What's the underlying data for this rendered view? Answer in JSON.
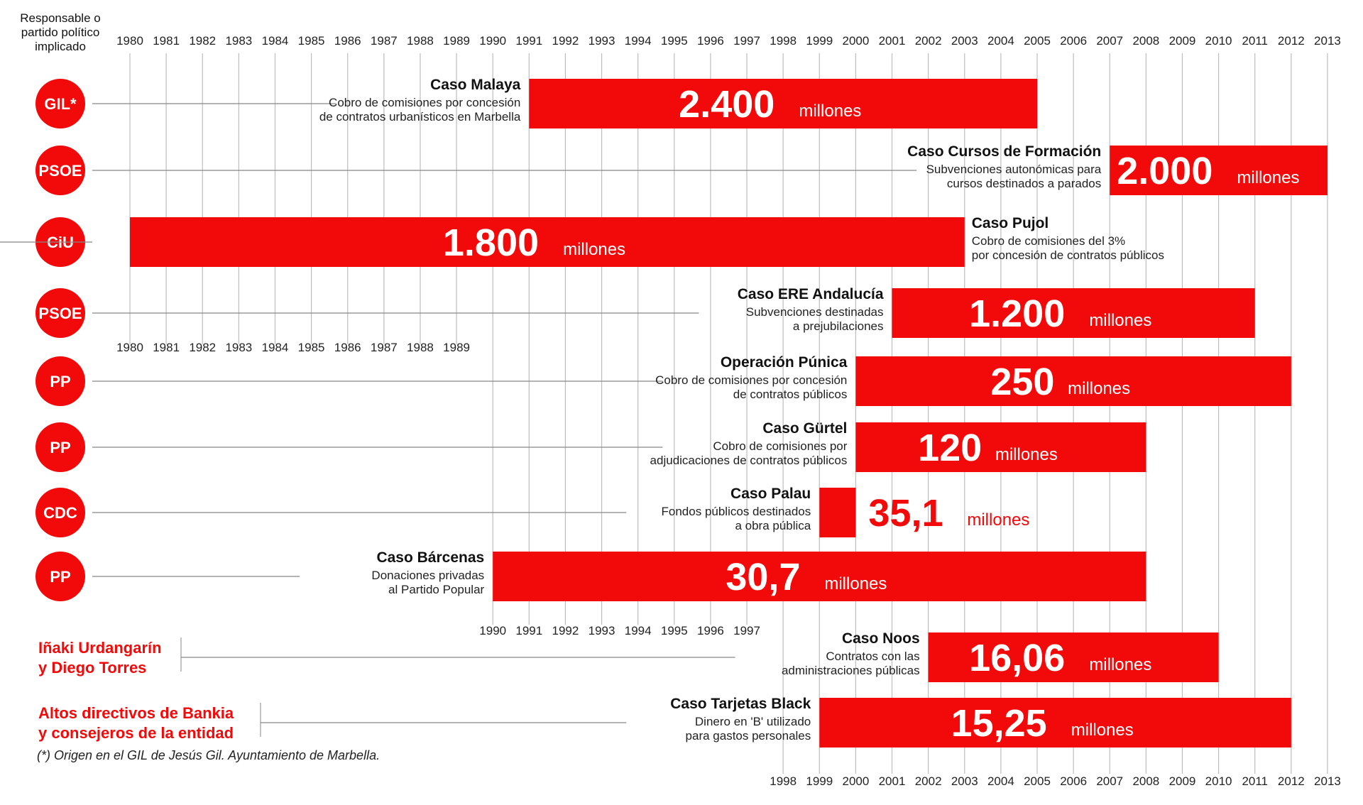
{
  "header": {
    "party_column": "Responsable o partido político implicado"
  },
  "footnote": "(*) Origen en el GIL de Jesús Gil. Ayuntamiento de Marbella.",
  "colors": {
    "accent": "#f20a0a",
    "grid": "#bdbdbd",
    "text": "#111111"
  },
  "chart_data": {
    "type": "bar",
    "subtype": "timeline-gantt",
    "x_axis": {
      "unit": "year",
      "range": [
        1980,
        2013
      ]
    },
    "axis_label_rows": [
      {
        "years": [
          1980,
          1981,
          1982,
          1983,
          1984,
          1985,
          1986,
          1987,
          1988,
          1989,
          1990,
          1991,
          1992,
          1993,
          1994,
          1995,
          1996,
          1997,
          1998,
          1999,
          2000,
          2001,
          2002,
          2003,
          2004,
          2005,
          2006,
          2007,
          2008,
          2009,
          2010,
          2011,
          2012,
          2013
        ]
      },
      {
        "years": [
          1980,
          1981,
          1982,
          1983,
          1984,
          1985,
          1986,
          1987,
          1988,
          1989
        ]
      },
      {
        "years": [
          1990,
          1991,
          1992,
          1993,
          1994,
          1995,
          1996,
          1997
        ]
      },
      {
        "years": [
          1998,
          1999,
          2000,
          2001,
          2002,
          2003,
          2004,
          2005,
          2006,
          2007,
          2008,
          2009,
          2010,
          2011,
          2012,
          2013
        ]
      }
    ],
    "unit_label": "millones",
    "cases": [
      {
        "responsible": "GIL*",
        "name": "Caso Malaya",
        "desc1": "Cobro de comisiones por concesión",
        "desc2": "de contratos urbanísticos en Marbella",
        "start": 1991,
        "end": 2005,
        "amount": 2400,
        "amount_label": "2.400"
      },
      {
        "responsible": "PSOE",
        "name": "Caso Cursos de Formación",
        "desc1": "Subvenciones autonómicas para",
        "desc2": "cursos destinados a parados",
        "start": 2007,
        "end": 2013,
        "amount": 2000,
        "amount_label": "2.000"
      },
      {
        "responsible": "CiU",
        "name": "Caso Pujol",
        "desc1": "Cobro de comisiones del 3%",
        "desc2": "por concesión de contratos públicos",
        "start": 1980,
        "end": 2003,
        "amount": 1800,
        "amount_label": "1.800"
      },
      {
        "responsible": "PSOE",
        "name": "Caso ERE Andalucía",
        "desc1": "Subvenciones destinadas",
        "desc2": "a prejubilaciones",
        "start": 2001,
        "end": 2011,
        "amount": 1200,
        "amount_label": "1.200"
      },
      {
        "responsible": "PP",
        "name": "Operación Púnica",
        "desc1": "Cobro de comisiones por concesión",
        "desc2": "de contratos públicos",
        "start": 2000,
        "end": 2012,
        "amount": 250,
        "amount_label": "250"
      },
      {
        "responsible": "PP",
        "name": "Caso Gürtel",
        "desc1": "Cobro de comisiones por",
        "desc2": "adjudicaciones de contratos públicos",
        "start": 2000,
        "end": 2008,
        "amount": 120,
        "amount_label": "120"
      },
      {
        "responsible": "CDC",
        "name": "Caso Palau",
        "desc1": "Fondos públicos destinados",
        "desc2": "a obra pública",
        "start": 1999,
        "end": 2000,
        "amount": 35.1,
        "amount_label": "35,1"
      },
      {
        "responsible": "PP",
        "name": "Caso Bárcenas",
        "desc1": "Donaciones privadas",
        "desc2": "al Partido Popular",
        "start": 1990,
        "end": 2008,
        "amount": 30.7,
        "amount_label": "30,7"
      },
      {
        "responsible_lines": [
          "Iñaki Urdangarín",
          "y Diego Torres"
        ],
        "name": "Caso Noos",
        "desc1": "Contratos con las",
        "desc2": "administraciones públicas",
        "start": 2002,
        "end": 2010,
        "amount": 16.06,
        "amount_label": "16,06"
      },
      {
        "responsible_lines": [
          "Altos directivos de Bankia",
          "y consejeros de la entidad"
        ],
        "name": "Caso Tarjetas Black",
        "desc1": "Dinero en 'B' utilizado",
        "desc2": "para gastos personales",
        "start": 1999,
        "end": 2012,
        "amount": 15.25,
        "amount_label": "15,25"
      }
    ]
  }
}
